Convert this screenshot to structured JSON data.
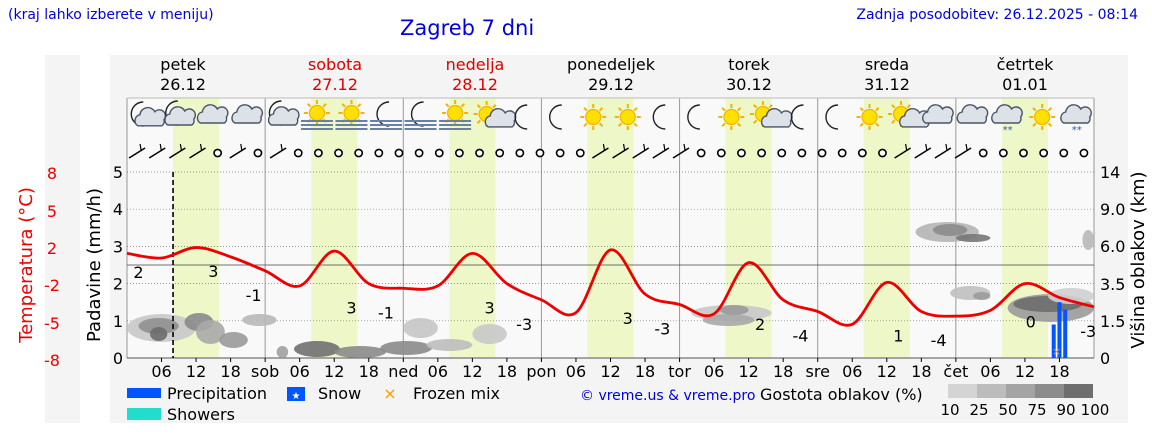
{
  "header": {
    "hint": "(kraj lahko izberete v meniju)",
    "title": "Zagreb 7 dni",
    "updated": "Zadnja posodobitev: 26.12.2025 - 08:14"
  },
  "footer": {
    "credit": "© vreme.us & vreme.pro"
  },
  "colors": {
    "temperature": "#ee0000",
    "precipitation": "#0055ff",
    "showers": "#22ddcc",
    "frozen_mix": "#ff9900",
    "daylight": "#eef7c8",
    "axis_label": "#000000",
    "weekend_day": "#dd0000",
    "weekday": "#000000"
  },
  "chart_data": {
    "type": "line",
    "title": "Zagreb 7 dni",
    "x": {
      "unit": "hour",
      "start": "26.12.2025 00:00",
      "range": [
        0,
        168
      ],
      "now": 8,
      "tick_labels": [
        "06",
        "12",
        "18",
        "sob",
        "06",
        "12",
        "18",
        "ned",
        "06",
        "12",
        "18",
        "pon",
        "06",
        "12",
        "18",
        "tor",
        "06",
        "12",
        "18",
        "sre",
        "06",
        "12",
        "18",
        "čet",
        "06",
        "12",
        "18"
      ]
    },
    "days": [
      {
        "name": "petek",
        "date": "26.12",
        "weekend": false
      },
      {
        "name": "sobota",
        "date": "27.12",
        "weekend": true
      },
      {
        "name": "nedelja",
        "date": "28.12",
        "weekend": true
      },
      {
        "name": "ponedeljek",
        "date": "29.12",
        "weekend": false
      },
      {
        "name": "torek",
        "date": "30.12",
        "weekend": false
      },
      {
        "name": "sreda",
        "date": "31.12",
        "weekend": false
      },
      {
        "name": "četrtek",
        "date": "01.01",
        "weekend": false
      }
    ],
    "daylight_hours": [
      8,
      16
    ],
    "y_left_outer": {
      "label": "Temperatura (°C)",
      "range": [
        -8,
        8
      ],
      "ticks": [
        "8",
        "5",
        "2",
        "-2",
        "-5",
        "-8"
      ]
    },
    "y_left_inner": {
      "label": "Padavine (mm/h)",
      "range": [
        0,
        5
      ],
      "ticks": [
        "0",
        "1",
        "2",
        "3",
        "4",
        "5"
      ]
    },
    "y_right": {
      "label": "Višina oblakov (km)",
      "ticks": [
        "0",
        "1.5",
        "3.5",
        "6.0",
        "9.0",
        "14"
      ]
    },
    "grid": true,
    "series": [
      {
        "name": "Temperatura (°C)",
        "x": [
          0,
          6,
          12,
          18,
          24,
          30,
          36,
          42,
          48,
          54,
          60,
          66,
          72,
          78,
          84,
          90,
          96,
          102,
          108,
          114,
          120,
          126,
          132,
          138,
          144,
          150,
          156,
          162,
          168
        ],
        "y": [
          1,
          0.6,
          1.5,
          0.7,
          -0.5,
          -1.8,
          1.2,
          -1.6,
          -2.0,
          -1.8,
          1.0,
          -1.6,
          -3.0,
          -4.1,
          1.3,
          -2.5,
          -3.4,
          -4.2,
          0.2,
          -3.0,
          -4.0,
          -5.1,
          -1.5,
          -4.0,
          -4.4,
          -3.9,
          -1.6,
          -2.8,
          -3.6
        ]
      },
      {
        "name": "Precipitation",
        "type": "bar",
        "x": [
          161,
          162,
          163
        ],
        "values": [
          0.9,
          1.5,
          1.3
        ]
      }
    ],
    "temp_labels": [
      {
        "text": "2",
        "x": 2
      },
      {
        "text": "3",
        "x": 15
      },
      {
        "text": "-1",
        "x": 22
      },
      {
        "text": "3",
        "x": 39
      },
      {
        "text": "-1",
        "x": 45
      },
      {
        "text": "3",
        "x": 63
      },
      {
        "text": "-3",
        "x": 69
      },
      {
        "text": "3",
        "x": 87
      },
      {
        "text": "-3",
        "x": 93
      },
      {
        "text": "2",
        "x": 110
      },
      {
        "text": "-4",
        "x": 117
      },
      {
        "text": "1",
        "x": 134
      },
      {
        "text": "-4",
        "x": 141
      },
      {
        "text": "0",
        "x": 157
      },
      {
        "text": "-3",
        "x": 167
      }
    ],
    "icons": [
      "moon-cloud",
      "cloud-moon",
      "cloud",
      "cloud",
      "cloud-moon",
      "sun-fog",
      "sun-fog",
      "moon-fog",
      "moon-fog",
      "sun-fog",
      "sun-cloud",
      "moon",
      "moon",
      "sun",
      "sun",
      "moon",
      "moon",
      "sun",
      "sun-cloud",
      "moon",
      "moon",
      "sun",
      "sun-cloud",
      "cloud",
      "cloud",
      "cloud-snow",
      "sun",
      "cloud-snow"
    ],
    "wind_segments": 48,
    "legend": [
      {
        "name": "Precipitation",
        "symbol": "bar",
        "color": "#0055ff"
      },
      {
        "name": "Snow",
        "symbol": "star",
        "color": "#0055ff"
      },
      {
        "name": "Frozen mix",
        "symbol": "x",
        "color": "#ff9900"
      },
      {
        "name": "Showers",
        "symbol": "bar",
        "color": "#22ddcc"
      }
    ],
    "cloud_density": {
      "label": "Gostota oblakov (%)",
      "levels": [
        "10",
        "25",
        "50",
        "75",
        "90",
        "100"
      ]
    }
  }
}
